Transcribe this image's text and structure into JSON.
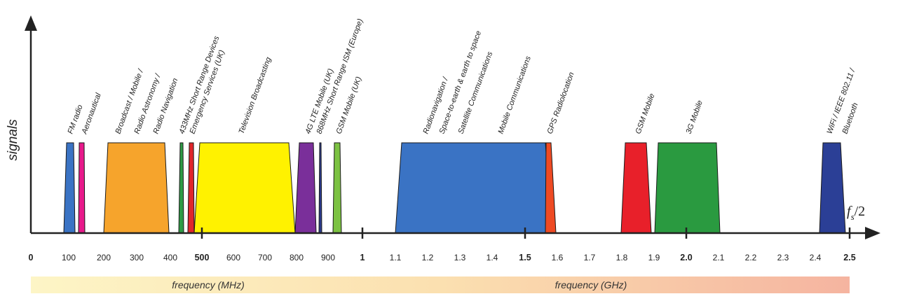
{
  "y_axis_label": "signals",
  "nyquist_label": {
    "f": "f",
    "sub": "s",
    "rest": "/2"
  },
  "freq_labels": {
    "mhz": "frequency (MHz)",
    "ghz": "frequency (GHz)"
  },
  "colors": {
    "gradient_start": "#fdf5c6",
    "gradient_mid": "#fbe0b0",
    "gradient_end": "#f5b4a0",
    "axis": "#222222"
  },
  "ticks": [
    {
      "label": "0",
      "bold": true,
      "mark": false
    },
    {
      "label": "100",
      "bold": false,
      "mark": false
    },
    {
      "label": "200",
      "bold": false,
      "mark": false
    },
    {
      "label": "300",
      "bold": false,
      "mark": false
    },
    {
      "label": "400",
      "bold": false,
      "mark": false
    },
    {
      "label": "500",
      "bold": true,
      "mark": true
    },
    {
      "label": "600",
      "bold": false,
      "mark": false
    },
    {
      "label": "700",
      "bold": false,
      "mark": false
    },
    {
      "label": "800",
      "bold": false,
      "mark": false
    },
    {
      "label": "900",
      "bold": false,
      "mark": false
    },
    {
      "label": "1",
      "bold": true,
      "mark": true
    },
    {
      "label": "1.1",
      "bold": false,
      "mark": false
    },
    {
      "label": "1.2",
      "bold": false,
      "mark": false
    },
    {
      "label": "1.3",
      "bold": false,
      "mark": false
    },
    {
      "label": "1.4",
      "bold": false,
      "mark": false
    },
    {
      "label": "1.5",
      "bold": true,
      "mark": true
    },
    {
      "label": "1.6",
      "bold": false,
      "mark": false
    },
    {
      "label": "1.7",
      "bold": false,
      "mark": false
    },
    {
      "label": "1.8",
      "bold": false,
      "mark": false
    },
    {
      "label": "1.9",
      "bold": false,
      "mark": false
    },
    {
      "label": "2.0",
      "bold": true,
      "mark": true
    },
    {
      "label": "2.1",
      "bold": false,
      "mark": false
    },
    {
      "label": "2.2",
      "bold": false,
      "mark": false
    },
    {
      "label": "2.3",
      "bold": false,
      "mark": false
    },
    {
      "label": "2.4",
      "bold": false,
      "mark": false
    },
    {
      "label": "2.5",
      "bold": true,
      "mark": true
    }
  ],
  "bands": [
    {
      "id": "fm",
      "color": "#3a73c4"
    },
    {
      "id": "aero",
      "color": "#e8198b"
    },
    {
      "id": "broadcast",
      "color": "#f6a42c"
    },
    {
      "id": "srd433",
      "color": "#2e9b45"
    },
    {
      "id": "emergency",
      "color": "#e0262b"
    },
    {
      "id": "tv",
      "color": "#fff200"
    },
    {
      "id": "lte",
      "color": "#7a2f9a"
    },
    {
      "id": "ism868",
      "color": "#2b3a8a"
    },
    {
      "id": "gsm900",
      "color": "#7cc242"
    },
    {
      "id": "radionav",
      "color": "#3a73c4"
    },
    {
      "id": "gps",
      "color": "#ee4a23"
    },
    {
      "id": "gsm1800",
      "color": "#e8202a"
    },
    {
      "id": "g3",
      "color": "#2a9a40"
    },
    {
      "id": "wifi",
      "color": "#2b3f96"
    }
  ],
  "band_labels": [
    "FM radio",
    "Aeronautical",
    "Broadcast / Mobile /",
    "Radio Astronomy /",
    "Radio Navigation",
    "433MHz Short Range Devices",
    "Emergency Services (UK)",
    "Television Broadcasting",
    "4G LTE Mobile (UK)",
    "868MHz Short Range ISM (Europe)",
    "GSM Mobile (UK)",
    "Radionavigation /",
    "Space-to-earth & earth to space",
    "Satellite Communications",
    "Mobile Communications",
    "GPS Radiolocation",
    "GSM Mobile",
    "3G Mobile",
    "WiFi / IEEE 802.11 /",
    "Bluetooth"
  ]
}
